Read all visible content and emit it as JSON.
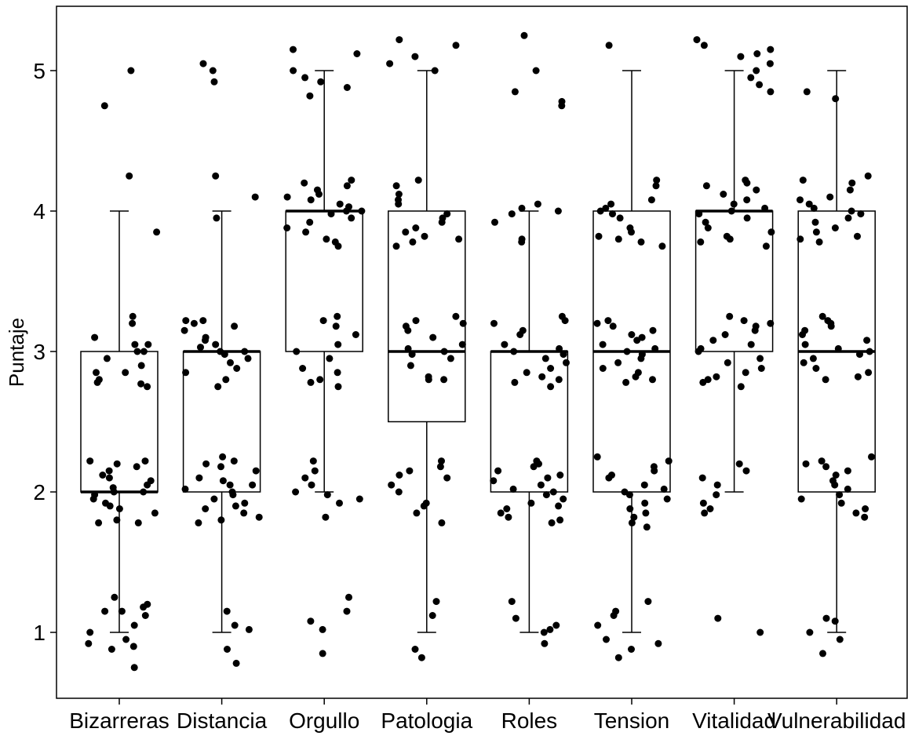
{
  "chart_data": {
    "type": "boxplot",
    "title": "",
    "xlabel": "",
    "ylabel": "Puntaje",
    "ylim": [
      0.7,
      5.3
    ],
    "y_ticks": [
      "1",
      "2",
      "3",
      "4",
      "5"
    ],
    "y_tick_values": [
      1,
      2,
      3,
      4,
      5
    ],
    "grid": false,
    "legend": "none",
    "categories": [
      "Bizarreras",
      "Distancia",
      "Orgullo",
      "Patologia",
      "Roles",
      "Tension",
      "Vitalidad",
      "Vulnerabilidad"
    ],
    "boxes": [
      {
        "category": "Bizarreras",
        "whisker_low": 1,
        "q1": 2,
        "median": 2,
        "q3": 3,
        "whisker_high": 4
      },
      {
        "category": "Distancia",
        "whisker_low": 1,
        "q1": 2,
        "median": 3,
        "q3": 3,
        "whisker_high": 4
      },
      {
        "category": "Orgullo",
        "whisker_low": 2,
        "q1": 3,
        "median": 4,
        "q3": 4,
        "whisker_high": 5
      },
      {
        "category": "Patologia",
        "whisker_low": 1,
        "q1": 2.5,
        "median": 3,
        "q3": 4,
        "whisker_high": 5
      },
      {
        "category": "Roles",
        "whisker_low": 1,
        "q1": 2,
        "median": 3,
        "q3": 3,
        "whisker_high": 4
      },
      {
        "category": "Tension",
        "whisker_low": 1,
        "q1": 2,
        "median": 3,
        "q3": 4,
        "whisker_high": 5
      },
      {
        "category": "Vitalidad",
        "whisker_low": 2,
        "q1": 3,
        "median": 4,
        "q3": 4,
        "whisker_high": 5
      },
      {
        "category": "Vulnerabilidad",
        "whisker_low": 1,
        "q1": 2,
        "median": 3,
        "q3": 4,
        "whisker_high": 5
      }
    ],
    "points": [
      {
        "category": "Bizarreras",
        "values": [
          5,
          4.75,
          4.25,
          3.85,
          3.25,
          3.2,
          3.1,
          3.05,
          3.05,
          3.0,
          3.0,
          2.95,
          2.9,
          2.85,
          2.85,
          2.8,
          2.78,
          2.77,
          2.75,
          2.22,
          2.22,
          2.2,
          2.18,
          2.15,
          2.12,
          2.1,
          2.08,
          2.05,
          2.03,
          2.0,
          2.0,
          1.98,
          1.95,
          1.92,
          1.9,
          1.88,
          1.85,
          1.8,
          1.78,
          1.78,
          1.25,
          1.2,
          1.18,
          1.15,
          1.15,
          1.12,
          1.05,
          1.0,
          0.95,
          0.92,
          0.9,
          0.88,
          0.75
        ]
      },
      {
        "category": "Distancia",
        "values": [
          5.05,
          5.0,
          4.92,
          4.25,
          4.1,
          3.95,
          3.22,
          3.22,
          3.2,
          3.18,
          3.15,
          3.1,
          3.08,
          3.05,
          3.03,
          3.0,
          3.0,
          2.98,
          2.95,
          2.92,
          2.88,
          2.85,
          2.8,
          2.75,
          2.25,
          2.22,
          2.2,
          2.18,
          2.15,
          2.1,
          2.08,
          2.05,
          2.05,
          2.02,
          2.0,
          1.98,
          1.95,
          1.92,
          1.9,
          1.88,
          1.85,
          1.82,
          1.8,
          1.78,
          1.15,
          1.05,
          1.02,
          0.88,
          0.78
        ]
      },
      {
        "category": "Orgullo",
        "values": [
          5.15,
          5.12,
          5.0,
          4.95,
          4.92,
          4.88,
          4.82,
          4.22,
          4.2,
          4.18,
          4.15,
          4.12,
          4.1,
          4.08,
          4.05,
          4.03,
          4.0,
          4.0,
          3.98,
          3.95,
          3.92,
          3.88,
          3.85,
          3.8,
          3.78,
          3.75,
          3.25,
          3.22,
          3.18,
          3.12,
          3.05,
          3.0,
          2.95,
          2.88,
          2.85,
          2.8,
          2.78,
          2.75,
          2.22,
          2.15,
          2.1,
          2.05,
          2.0,
          1.98,
          1.95,
          1.92,
          1.82,
          1.25,
          1.15,
          1.08,
          1.02,
          0.85
        ]
      },
      {
        "category": "Patologia",
        "values": [
          5.22,
          5.18,
          5.1,
          5.05,
          5.0,
          4.22,
          4.18,
          4.12,
          4.08,
          4.05,
          3.98,
          3.95,
          3.92,
          3.88,
          3.85,
          3.82,
          3.8,
          3.78,
          3.75,
          3.25,
          3.22,
          3.2,
          3.18,
          3.15,
          3.1,
          3.05,
          3.02,
          3.0,
          2.98,
          2.95,
          2.9,
          2.82,
          2.8,
          2.8,
          2.22,
          2.18,
          2.15,
          2.12,
          2.1,
          2.05,
          2.0,
          1.92,
          1.9,
          1.85,
          1.78,
          1.22,
          1.12,
          0.88,
          0.82
        ]
      },
      {
        "category": "Roles",
        "values": [
          5.25,
          5.0,
          4.85,
          4.78,
          4.75,
          4.05,
          4.02,
          4.0,
          3.98,
          3.92,
          3.8,
          3.78,
          3.25,
          3.22,
          3.2,
          3.15,
          3.12,
          3.05,
          3.02,
          3.0,
          2.98,
          2.95,
          2.92,
          2.88,
          2.85,
          2.82,
          2.8,
          2.78,
          2.75,
          2.22,
          2.2,
          2.18,
          2.15,
          2.12,
          2.1,
          2.08,
          2.05,
          2.02,
          2.0,
          1.98,
          1.95,
          1.92,
          1.9,
          1.88,
          1.85,
          1.82,
          1.8,
          1.78,
          1.22,
          1.1,
          1.05,
          1.02,
          1.0,
          0.92
        ]
      },
      {
        "category": "Tension",
        "values": [
          5.18,
          4.22,
          4.18,
          4.08,
          4.05,
          4.02,
          4.0,
          3.98,
          3.95,
          3.88,
          3.85,
          3.82,
          3.8,
          3.78,
          3.75,
          3.22,
          3.2,
          3.18,
          3.15,
          3.12,
          3.1,
          3.08,
          3.05,
          3.02,
          3.0,
          2.98,
          2.95,
          2.92,
          2.88,
          2.85,
          2.82,
          2.8,
          2.78,
          2.25,
          2.22,
          2.18,
          2.15,
          2.12,
          2.1,
          2.05,
          2.02,
          2.0,
          1.98,
          1.95,
          1.92,
          1.88,
          1.85,
          1.82,
          1.78,
          1.75,
          1.22,
          1.15,
          1.12,
          1.05,
          0.95,
          0.92,
          0.88,
          0.82
        ]
      },
      {
        "category": "Vitalidad",
        "values": [
          5.22,
          5.18,
          5.15,
          5.12,
          5.1,
          5.05,
          5.0,
          4.95,
          4.9,
          4.85,
          4.22,
          4.2,
          4.18,
          4.15,
          4.12,
          4.08,
          4.05,
          4.02,
          4.0,
          3.98,
          3.95,
          3.92,
          3.88,
          3.85,
          3.82,
          3.8,
          3.78,
          3.75,
          3.25,
          3.22,
          3.2,
          3.18,
          3.15,
          3.12,
          3.08,
          3.05,
          3.02,
          3.0,
          2.95,
          2.92,
          2.88,
          2.85,
          2.82,
          2.8,
          2.78,
          2.75,
          2.2,
          2.15,
          2.1,
          2.05,
          1.98,
          1.92,
          1.88,
          1.85,
          1.1,
          1.0
        ]
      },
      {
        "category": "Vulnerabilidad",
        "values": [
          4.85,
          4.8,
          4.25,
          4.22,
          4.2,
          4.15,
          4.1,
          4.08,
          4.05,
          4.02,
          4.0,
          3.98,
          3.95,
          3.92,
          3.88,
          3.85,
          3.82,
          3.8,
          3.78,
          3.25,
          3.22,
          3.2,
          3.18,
          3.15,
          3.12,
          3.08,
          3.05,
          3.02,
          3.0,
          2.98,
          2.95,
          2.92,
          2.88,
          2.85,
          2.82,
          2.8,
          2.25,
          2.22,
          2.2,
          2.18,
          2.15,
          2.12,
          2.08,
          2.05,
          2.02,
          1.98,
          1.95,
          1.92,
          1.88,
          1.85,
          1.82,
          1.1,
          1.08,
          1.0,
          0.95,
          0.85
        ]
      }
    ]
  }
}
